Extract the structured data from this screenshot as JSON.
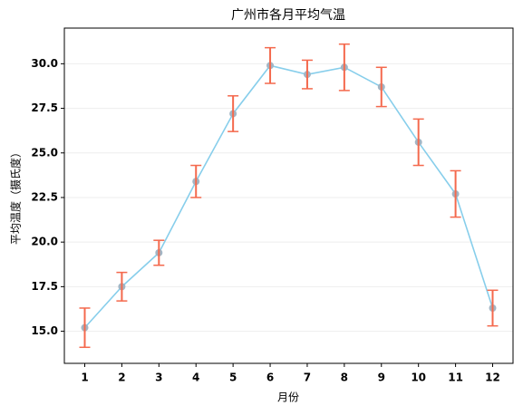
{
  "chart_data": {
    "type": "line",
    "title": "广州市各月平均气温",
    "xlabel": "月份",
    "ylabel": "平均温度（摄氏度）",
    "x": [
      1,
      2,
      3,
      4,
      5,
      6,
      7,
      8,
      9,
      10,
      11,
      12
    ],
    "values": [
      15.2,
      17.5,
      19.4,
      23.4,
      27.2,
      29.9,
      29.4,
      29.8,
      28.7,
      25.6,
      22.7,
      16.3
    ],
    "errors": [
      1.1,
      0.8,
      0.7,
      0.9,
      1.0,
      1.0,
      0.8,
      1.3,
      1.1,
      1.3,
      1.3,
      1.0
    ],
    "color": "#87ceeb",
    "marker_color": "#a3b5c4",
    "error_color": "#f4694d",
    "xlim": [
      0.45,
      12.55
    ],
    "xticks": [
      1,
      2,
      3,
      4,
      5,
      6,
      7,
      8,
      9,
      10,
      11,
      12
    ],
    "ylim": [
      13.2,
      32
    ],
    "yticks": [
      {
        "value": 15,
        "label": "15.0"
      },
      {
        "value": 17.5,
        "label": "17.5"
      },
      {
        "value": 20,
        "label": "20.0"
      },
      {
        "value": 22.5,
        "label": "22.5"
      },
      {
        "value": 25,
        "label": "25.0"
      },
      {
        "value": 27.5,
        "label": "27.5"
      },
      {
        "value": 30,
        "label": "30.0"
      }
    ],
    "grid": true
  }
}
